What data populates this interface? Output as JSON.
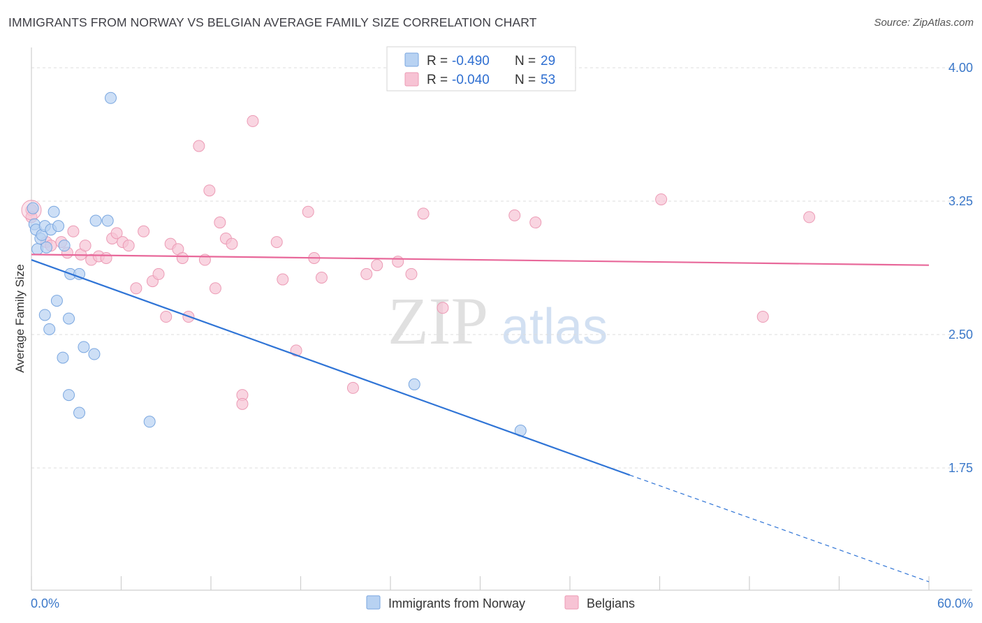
{
  "title": "IMMIGRANTS FROM NORWAY VS BELGIAN AVERAGE FAMILY SIZE CORRELATION CHART",
  "source": "Source: ZipAtlas.com",
  "watermark": {
    "part1": "ZIP",
    "part2": "atlas"
  },
  "colors": {
    "blue_fill": "#b8d2f2",
    "blue_stroke": "#7aa7e0",
    "blue_line": "#2f74d6",
    "pink_fill": "#f7c3d4",
    "pink_stroke": "#ec9bb5",
    "pink_line": "#e8689a",
    "grid": "#dcdcdc",
    "axis_label": "#3b78c9"
  },
  "legend": {
    "r_label": "R =",
    "n_label": "N =",
    "rows": [
      {
        "r": "-0.490",
        "n": "29",
        "color": "blue"
      },
      {
        "r": "-0.040",
        "n": "53",
        "color": "pink"
      }
    ]
  },
  "chart_data": {
    "type": "scatter",
    "ylabel": "Average Family Size",
    "xlim": [
      0,
      60
    ],
    "ylim": [
      1.0,
      4.15
    ],
    "x_tick_labels": [
      "0.0%",
      "60.0%"
    ],
    "y_ticks": [
      4.0,
      3.25,
      2.5,
      1.75
    ],
    "y_tick_labels": [
      "4.00",
      "3.25",
      "2.50",
      "1.75"
    ],
    "grid": "horizontal dashed",
    "series": [
      {
        "name": "Immigrants from Norway",
        "color": "blue",
        "trend": {
          "x0": 0,
          "y0": 2.92,
          "x1": 40,
          "y1": 1.71,
          "dashed_to_x": 60,
          "dashed_to_y": 1.11
        },
        "points": [
          [
            0.1,
            3.21
          ],
          [
            0.2,
            3.12
          ],
          [
            0.3,
            3.09
          ],
          [
            0.4,
            2.98
          ],
          [
            0.6,
            3.04
          ],
          [
            0.7,
            3.06
          ],
          [
            0.9,
            3.11
          ],
          [
            1.0,
            2.99
          ],
          [
            1.3,
            3.09
          ],
          [
            1.5,
            3.19
          ],
          [
            1.8,
            3.11
          ],
          [
            2.2,
            3.0
          ],
          [
            2.6,
            2.84
          ],
          [
            3.2,
            2.84
          ],
          [
            4.3,
            3.14
          ],
          [
            5.1,
            3.14
          ],
          [
            1.7,
            2.69
          ],
          [
            0.9,
            2.61
          ],
          [
            1.2,
            2.53
          ],
          [
            2.5,
            2.59
          ],
          [
            3.5,
            2.43
          ],
          [
            4.2,
            2.39
          ],
          [
            2.1,
            2.37
          ],
          [
            2.5,
            2.16
          ],
          [
            3.2,
            2.06
          ],
          [
            7.9,
            2.01
          ],
          [
            5.3,
            3.83
          ],
          [
            25.6,
            2.22
          ],
          [
            32.7,
            1.96
          ]
        ]
      },
      {
        "name": "Belgians",
        "color": "pink",
        "trend": {
          "x0": 0,
          "y0": 2.95,
          "x1": 60,
          "y1": 2.89
        },
        "points": [
          [
            0.0,
            3.2
          ],
          [
            1.0,
            3.02
          ],
          [
            1.3,
            3.0
          ],
          [
            2.0,
            3.02
          ],
          [
            2.4,
            2.96
          ],
          [
            2.8,
            3.08
          ],
          [
            3.3,
            2.95
          ],
          [
            3.6,
            3.0
          ],
          [
            4.0,
            2.92
          ],
          [
            4.5,
            2.94
          ],
          [
            5.0,
            2.93
          ],
          [
            5.4,
            3.04
          ],
          [
            5.7,
            3.07
          ],
          [
            6.1,
            3.02
          ],
          [
            6.5,
            3.0
          ],
          [
            7.5,
            3.08
          ],
          [
            8.1,
            2.8
          ],
          [
            7.0,
            2.76
          ],
          [
            8.5,
            2.84
          ],
          [
            9.0,
            2.6
          ],
          [
            9.3,
            3.01
          ],
          [
            9.8,
            2.98
          ],
          [
            10.1,
            2.93
          ],
          [
            10.5,
            2.6
          ],
          [
            11.2,
            3.56
          ],
          [
            11.6,
            2.92
          ],
          [
            11.9,
            3.31
          ],
          [
            12.3,
            2.76
          ],
          [
            12.6,
            3.13
          ],
          [
            13.0,
            3.04
          ],
          [
            13.4,
            3.01
          ],
          [
            14.1,
            2.16
          ],
          [
            14.1,
            2.11
          ],
          [
            14.8,
            3.7
          ],
          [
            16.4,
            3.02
          ],
          [
            16.8,
            2.81
          ],
          [
            17.7,
            2.41
          ],
          [
            18.5,
            3.19
          ],
          [
            18.9,
            2.93
          ],
          [
            19.4,
            2.82
          ],
          [
            21.5,
            2.2
          ],
          [
            22.4,
            2.84
          ],
          [
            23.1,
            2.89
          ],
          [
            24.5,
            2.91
          ],
          [
            25.4,
            2.84
          ],
          [
            26.2,
            3.18
          ],
          [
            27.5,
            2.65
          ],
          [
            32.3,
            3.17
          ],
          [
            33.7,
            3.13
          ],
          [
            42.1,
            3.26
          ],
          [
            48.9,
            2.6
          ],
          [
            52.0,
            3.16
          ],
          [
            0.0,
            3.16
          ]
        ]
      }
    ]
  }
}
